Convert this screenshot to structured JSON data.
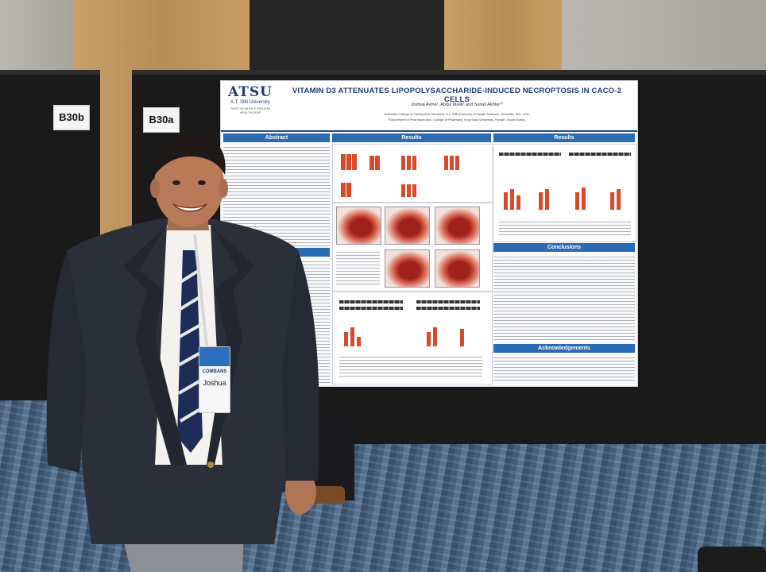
{
  "booth_labels": {
    "left": "B30b",
    "right": "B30a"
  },
  "poster": {
    "logo": "ATSU",
    "logo_sub": "A.T. Still University",
    "logo_tag": "FIRST IN WHOLE PERSON HEALTHCARE",
    "title": "VITAMIN D3 ATTENUATES LIPOPOLYSACCHARIDE-INDUCED NECROPTOSIS IN CACO-2 CELLS",
    "authors": "Joshua Avina¹, Abdul Malik² and Suhail Akhtar¹*",
    "affiliation_1": "¹Kirksville College of Osteopathic Medicine, A.T. Still University of Health Sciences, Kirksville, MO, USA,",
    "affiliation_2": "²Department of Pharmaceutics, College of Pharmacy, King Saud University, Riyadh, Saudi Arabia.",
    "sections": {
      "abstract": "Abstract",
      "methods": "Methods",
      "results_1": "Results",
      "results_2": "Results",
      "conclusions": "Conclusions",
      "acknowledgements": "Acknowledgements"
    }
  },
  "badge": {
    "name": "Joshua",
    "event": "COMBANS"
  },
  "colors": {
    "poster_blue": "#2a6bb3",
    "title_navy": "#1f3c6e",
    "bar_red": "#d84a2a",
    "board_black": "#1a1a1a",
    "carpet_blue": "#4a6886"
  }
}
